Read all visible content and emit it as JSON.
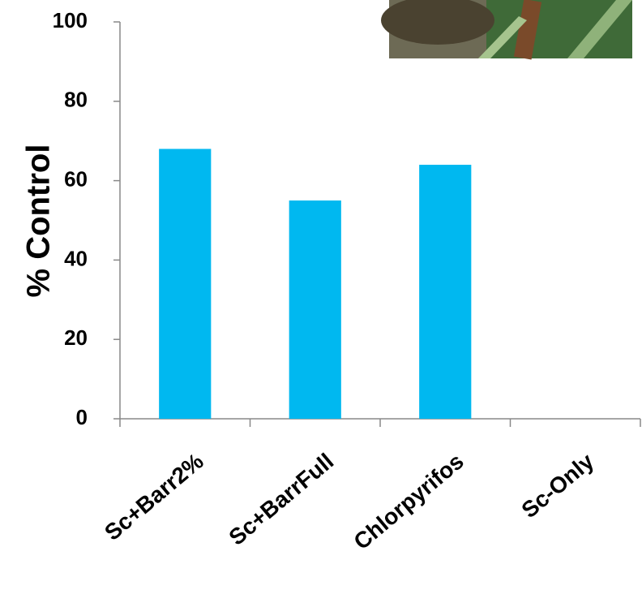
{
  "chart_data": {
    "type": "bar",
    "y_label": "% Control",
    "categories": [
      "Sc+Barr2%",
      "Sc+BarrFull",
      "Chlorpyrifos",
      "Sc-Only"
    ],
    "values": [
      68,
      55,
      64,
      0
    ],
    "color": "#00b8f0",
    "ylim": [
      0,
      100
    ],
    "yticks": [
      0,
      20,
      40,
      60,
      80,
      100
    ],
    "grid": false
  }
}
